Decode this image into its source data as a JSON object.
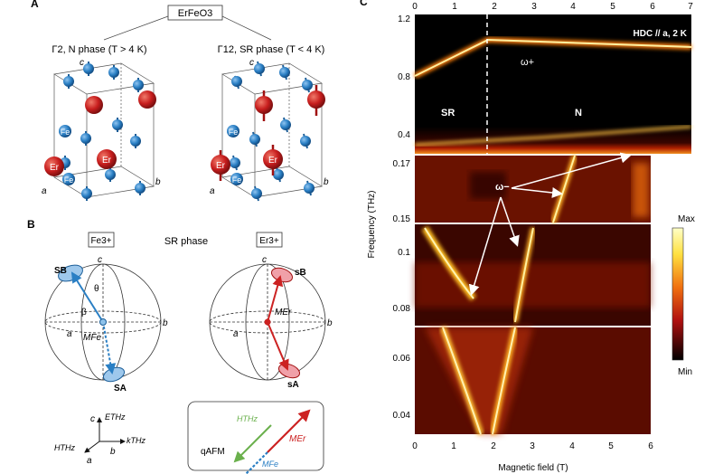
{
  "panelA": {
    "letter": "A",
    "compound": "ErFeO3",
    "left_title": "Γ2, N phase (T > 4 K)",
    "right_title": "Γ12, SR phase (T < 4 K)",
    "axis_a": "a",
    "axis_b": "b",
    "axis_c": "c",
    "fe_label": "Fe",
    "er_label": "Er"
  },
  "panelB": {
    "letter": "B",
    "phase_title": "SR phase",
    "fe_box": "Fe3+",
    "er_box": "Er3+",
    "sB": "SB",
    "sA": "SA",
    "theta": "θ",
    "beta": "β",
    "m_fe": "MFe",
    "m_er": "MEr",
    "er_sB": "sB",
    "er_sA": "sA",
    "coord_c": "c",
    "coord_e": "ETHz",
    "coord_h": "HTHz",
    "coord_k": "kTHz",
    "coord_a": "a",
    "coord_b": "b",
    "qafm": "qAFM",
    "h_thz": "HTHz",
    "m_er_leg": "MEr",
    "m_fe_leg": "MFe",
    "colors": {
      "fe_blue": "#2a7fc4",
      "er_red": "#cc2222",
      "h_green": "#6ab04c"
    }
  },
  "panelC": {
    "letter": "C",
    "top_ticks": [
      "0",
      "1",
      "2",
      "3",
      "4",
      "5",
      "6",
      "7"
    ],
    "bottom_ticks": [
      "0",
      "1",
      "2",
      "3",
      "4",
      "5",
      "6"
    ],
    "y_ticks_top": [
      "1.2",
      "0.8",
      "0.4"
    ],
    "y_ticks_mid1": [
      "0.17",
      "0.15"
    ],
    "y_ticks_mid2": [
      "0.1",
      "0.08"
    ],
    "y_ticks_bot": [
      "0.06",
      "0.04"
    ],
    "ylabel": "Frequency (THz)",
    "xlabel": "Magnetic field (T)",
    "condition": "HDC // a, 2 K",
    "omega_plus": "ω+",
    "omega_minus": "ω−",
    "SR": "SR",
    "N": "N",
    "colorbar_max": "Max",
    "colorbar_min": "Min"
  }
}
